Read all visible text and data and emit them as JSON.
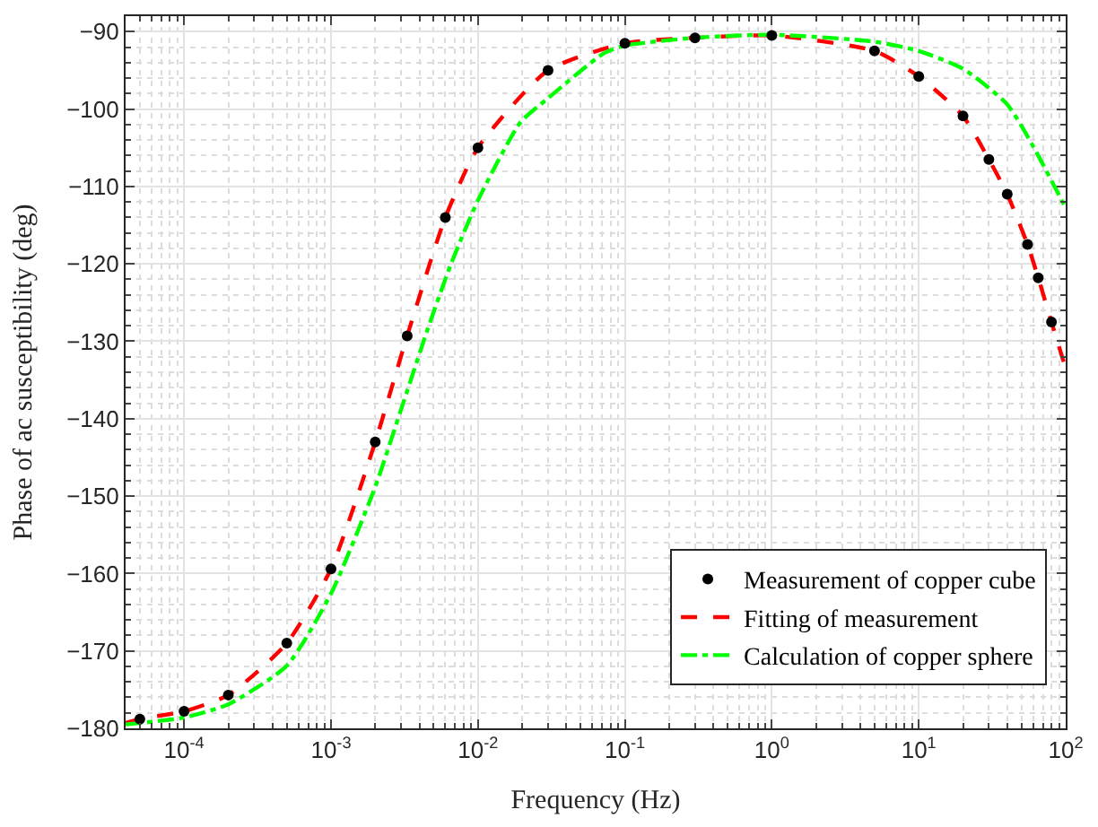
{
  "chart_data": {
    "type": "line",
    "xlabel": "Frequency (Hz)",
    "ylabel": "Phase of ac susceptibility (deg)",
    "log": "x",
    "grid": true,
    "legend": "bottom right",
    "xlim": [
      4e-05,
      100
    ],
    "xticks": [
      {
        "value": 0.0001,
        "label": "10$^{-4}$"
      },
      {
        "value": 0.001,
        "label": "10$^{-3}$"
      },
      {
        "value": 0.01,
        "label": "10$^{-2}$"
      },
      {
        "value": 0.1,
        "label": "10$^{-1}$"
      },
      {
        "value": 1,
        "label": "10$^{0}$"
      },
      {
        "value": 10,
        "label": "10$^{1}$"
      },
      {
        "value": 100,
        "label": "10$^{2}$"
      }
    ],
    "ylim": [
      -180,
      -88
    ],
    "yticks": [
      -180,
      -170,
      -160,
      -150,
      -140,
      -130,
      -120,
      -110,
      -100,
      -90
    ],
    "series": [
      {
        "name": "Measurement of copper cube",
        "type": "scatter",
        "marker": "circle",
        "color": "#000000",
        "x": [
          5e-05,
          0.0001,
          0.0002,
          0.0005,
          0.001,
          0.002,
          0.0033,
          0.006,
          0.01,
          0.03,
          0.1,
          0.3,
          1,
          5,
          10,
          20,
          30,
          40,
          55,
          65,
          80
        ],
        "values": [
          -178.8,
          -177.8,
          -175.7,
          -169,
          -159.4,
          -143,
          -129.3,
          -114,
          -105,
          -95,
          -91.5,
          -90.8,
          -90.5,
          -92.5,
          -95.8,
          -100.9,
          -106.5,
          -111,
          -117.5,
          -121.8,
          -127.5
        ]
      },
      {
        "name": "Fitting of measurement",
        "line_style": "dashed",
        "color": "#ff0000",
        "x": [
          4e-05,
          5e-05,
          0.0001,
          0.0002,
          0.0005,
          0.001,
          0.002,
          0.0033,
          0.006,
          0.01,
          0.03,
          0.1,
          0.3,
          1,
          5,
          10,
          20,
          30,
          40,
          55,
          65,
          80,
          100
        ],
        "values": [
          -179.3,
          -178.8,
          -177.8,
          -175.7,
          -169,
          -159.4,
          -143,
          -129.3,
          -114,
          -105,
          -95,
          -91.5,
          -90.8,
          -90.5,
          -92.5,
          -95.8,
          -100.9,
          -106.5,
          -111,
          -117.5,
          -121.8,
          -127.5,
          -133.5
        ]
      },
      {
        "name": "Calculation of copper sphere",
        "type": "line",
        "line_style": "dashdot",
        "color": "#00ff00",
        "x": [
          4e-05,
          0.0001,
          0.0002,
          0.0005,
          0.001,
          0.002,
          0.003,
          0.0045,
          0.0065,
          0.01,
          0.0195,
          0.03,
          0.072,
          0.1,
          0.3,
          1,
          5,
          10,
          20,
          40,
          60,
          100
        ],
        "values": [
          -179.5,
          -178.6,
          -176.9,
          -171.9,
          -162.6,
          -148.8,
          -138.8,
          -128.7,
          -120.2,
          -111.8,
          -101.7,
          -98.6,
          -92.8,
          -91.8,
          -90.8,
          -90.4,
          -91.3,
          -92.5,
          -94.8,
          -99.4,
          -104.8,
          -112.8
        ]
      }
    ]
  }
}
